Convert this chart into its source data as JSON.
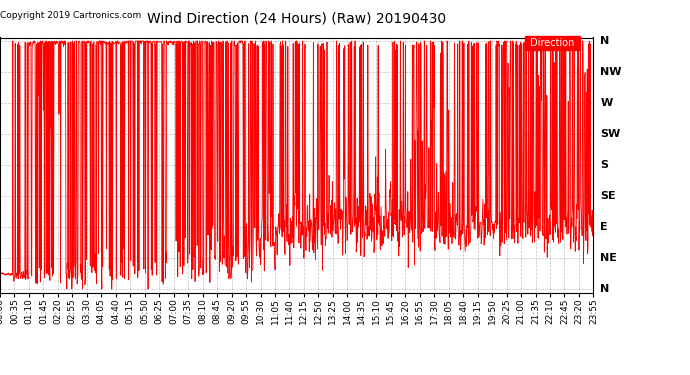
{
  "title": "Wind Direction (24 Hours) (Raw) 20190430",
  "copyright": "Copyright 2019 Cartronics.com",
  "legend_label": "Direction",
  "legend_bg": "#ff0000",
  "legend_text_color": "#ffffff",
  "line_color": "#ff0000",
  "bg_color": "#ffffff",
  "plot_bg_color": "#ffffff",
  "grid_color": "#b0b0b0",
  "ytick_labels": [
    "N",
    "NE",
    "E",
    "SE",
    "S",
    "SW",
    "W",
    "NW",
    "N"
  ],
  "ytick_values": [
    0,
    45,
    90,
    135,
    180,
    225,
    270,
    315,
    360
  ],
  "ylim": [
    -5,
    365
  ],
  "xlim_min": 0,
  "xlim_max": 1435,
  "x_tick_interval_minutes": 35,
  "title_fontsize": 10,
  "copyright_fontsize": 6.5,
  "tick_fontsize": 6.5,
  "ytick_fontsize": 8,
  "linewidth": 0.6
}
